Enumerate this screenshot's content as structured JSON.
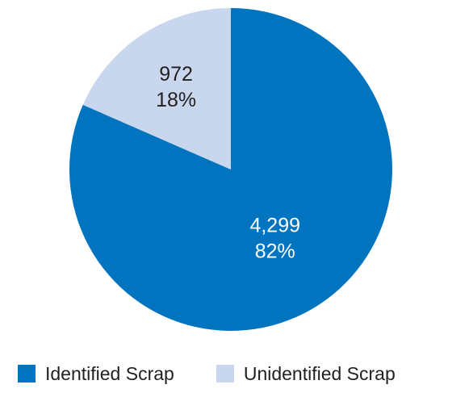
{
  "chart_data": {
    "type": "pie",
    "title": "",
    "slices": [
      {
        "name": "Identified Scrap",
        "value": 4299,
        "value_label": "4,299",
        "percent_label": "82%",
        "color": "#0074bf",
        "label_color": "#ffffff"
      },
      {
        "name": "Unidentified Scrap",
        "value": 972,
        "value_label": "972",
        "percent_label": "18%",
        "color": "#c8d7ee",
        "label_color": "#231f20"
      }
    ],
    "legend_position": "bottom-left",
    "start": "top, clockwise"
  }
}
